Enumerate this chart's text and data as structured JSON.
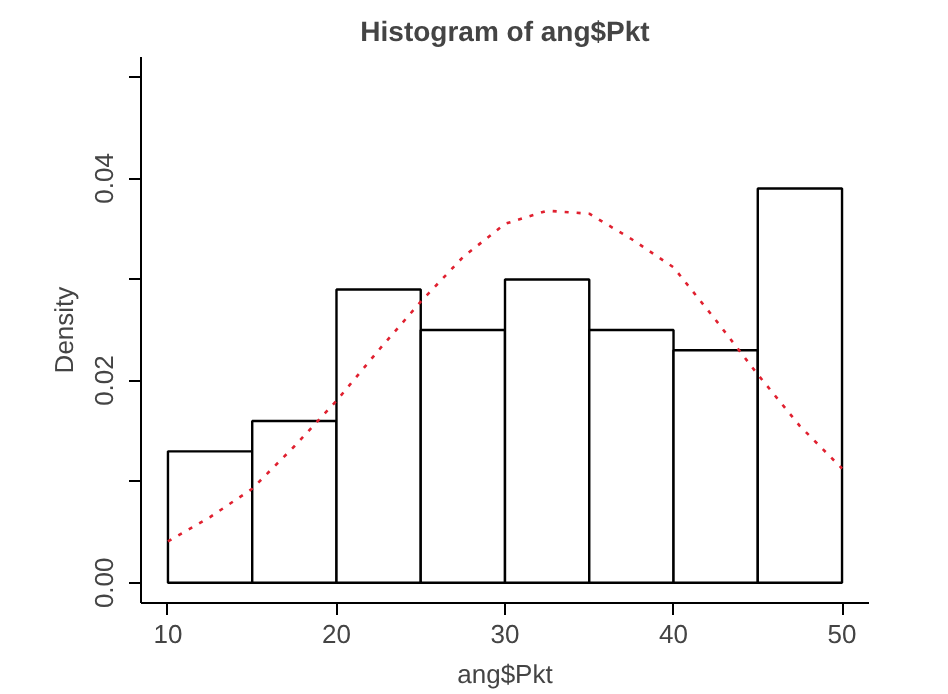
{
  "chart_data": {
    "type": "histogram",
    "title": "Histogram of ang$Pkt",
    "xlabel": "ang$Pkt",
    "ylabel": "Density",
    "bins": [
      10,
      15,
      20,
      25,
      30,
      35,
      40,
      45,
      50
    ],
    "values": [
      0.013,
      0.016,
      0.029,
      0.025,
      0.03,
      0.025,
      0.023,
      0.039
    ],
    "color": "#ffffff",
    "series": [
      {
        "type": "line",
        "color": "#e0202f",
        "line_style": "dotted",
        "x": [
          10,
          12.5,
          15,
          17.5,
          20,
          22.5,
          25,
          27.5,
          30,
          32.5,
          35,
          37.5,
          40,
          42.5,
          45,
          47.5,
          50
        ],
        "values": [
          0.0041,
          0.0065,
          0.0093,
          0.0135,
          0.018,
          0.023,
          0.0278,
          0.0322,
          0.0355,
          0.0368,
          0.0365,
          0.034,
          0.0312,
          0.026,
          0.0206,
          0.0155,
          0.0113
        ]
      }
    ],
    "xlim": [
      8.4,
      51.6
    ],
    "ylim": [
      -0.002,
      0.052
    ],
    "xticks": [
      10,
      20,
      30,
      40,
      50
    ],
    "yticks": [
      {
        "value": 0.0,
        "label": "0.00"
      },
      {
        "value": 0.01,
        "label": null
      },
      {
        "value": 0.02,
        "label": "0.02"
      },
      {
        "value": 0.03,
        "label": null
      },
      {
        "value": 0.04,
        "label": "0.04"
      },
      {
        "value": 0.05,
        "label": null
      }
    ],
    "grid": false,
    "marker": "none"
  }
}
